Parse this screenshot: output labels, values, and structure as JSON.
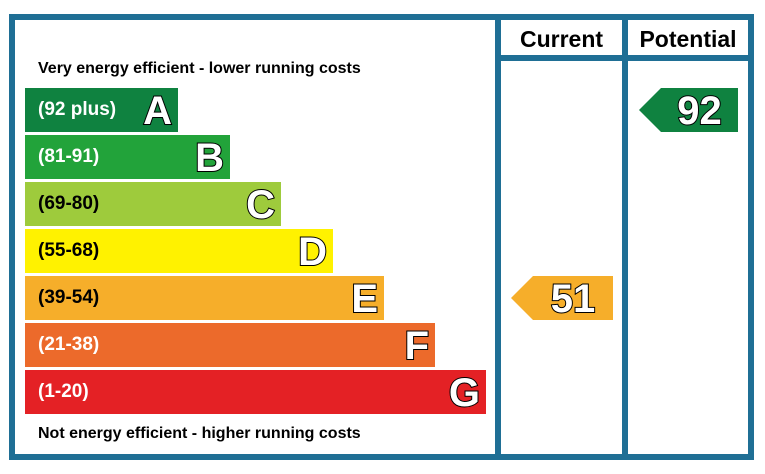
{
  "chart_data": {
    "type": "bar",
    "title": "",
    "headers": {
      "current": "Current",
      "potential": "Potential"
    },
    "top_caption": "Very energy efficient - lower running costs",
    "bottom_caption": "Not energy efficient - higher running costs",
    "bands": [
      {
        "letter": "A",
        "range": "(92 plus)",
        "color": "#0f8240"
      },
      {
        "letter": "B",
        "range": "(81-91)",
        "color": "#22a33a"
      },
      {
        "letter": "C",
        "range": "(69-80)",
        "color": "#9ecb3c"
      },
      {
        "letter": "D",
        "range": "(55-68)",
        "color": "#fff200"
      },
      {
        "letter": "E",
        "range": "(39-54)",
        "color": "#f6ae2a"
      },
      {
        "letter": "F",
        "range": "(21-38)",
        "color": "#ec6a2b"
      },
      {
        "letter": "G",
        "range": "(1-20)",
        "color": "#e42125"
      }
    ],
    "current": {
      "value": 51,
      "band": "E",
      "color": "#f6ae2a"
    },
    "potential": {
      "value": 92,
      "band": "A",
      "color": "#0f8240"
    }
  }
}
